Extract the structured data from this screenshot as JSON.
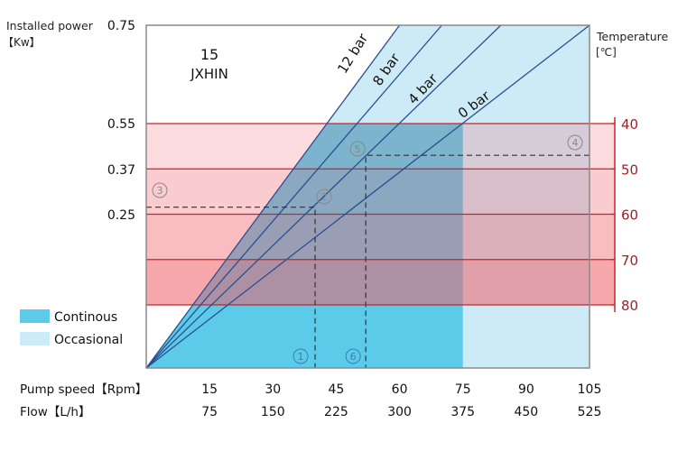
{
  "chart_data": {
    "type": "line",
    "title": "15",
    "subtitle": "JXHIN",
    "ylabel": "Installed power",
    "ylabel_unit": "【Kw】",
    "y_ticks": [
      0.25,
      0.37,
      0.55,
      0.75
    ],
    "y_tick_labels": [
      "0.25",
      "0.37",
      "0.55",
      "0.75"
    ],
    "y2label": "Temperature",
    "y2label_unit": "[℃]",
    "y2_ticks": [
      40,
      50,
      60,
      70,
      80
    ],
    "x_label": "Pump speed【Rpm】",
    "x_ticks": [
      15,
      30,
      45,
      60,
      75,
      90,
      105
    ],
    "x_tick_labels": [
      "15",
      "30",
      "45",
      "60",
      "75",
      "90",
      "105"
    ],
    "x2_label": "Flow【L/h】",
    "x2_tick_labels": [
      "75",
      "150",
      "225",
      "300",
      "375",
      "450",
      "525"
    ],
    "xlim": [
      0,
      105
    ],
    "ylim": [
      0,
      0.75
    ],
    "series": [
      {
        "name": "12 bar",
        "x": [
          0,
          60
        ],
        "y": [
          0,
          0.75
        ]
      },
      {
        "name": "8 bar",
        "x": [
          0,
          70
        ],
        "y": [
          0,
          0.75
        ]
      },
      {
        "name": "4 bar",
        "x": [
          0,
          84
        ],
        "y": [
          0,
          0.75
        ]
      },
      {
        "name": "0 bar",
        "x": [
          0,
          105
        ],
        "y": [
          0,
          0.75
        ]
      }
    ],
    "temperature_bands": [
      {
        "from": 40,
        "to": 50
      },
      {
        "from": 50,
        "to": 60
      },
      {
        "from": 60,
        "to": 70
      },
      {
        "from": 70,
        "to": 80
      }
    ],
    "regions": [
      {
        "name": "Continous",
        "x_range": [
          0,
          75
        ],
        "color": "#5ccbea"
      },
      {
        "name": "Occasional",
        "x_range": [
          75,
          105
        ],
        "color": "#cdebf7"
      }
    ],
    "legend": {
      "position": "bottom-left",
      "items": [
        "Continous",
        "Occasional"
      ]
    },
    "annotations": [
      {
        "label": "①",
        "type": "speed",
        "value": 40
      },
      {
        "label": "②",
        "type": "intersection",
        "speed": 40,
        "power": 0.27
      },
      {
        "label": "③",
        "type": "power",
        "value": 0.27
      },
      {
        "label": "④",
        "type": "temperature",
        "value": 47
      },
      {
        "label": "⑤",
        "type": "intersection",
        "speed": 52,
        "temperature": 47
      },
      {
        "label": "⑥",
        "type": "speed",
        "value": 52
      }
    ],
    "colors": {
      "line": "#2a4f8f",
      "band_line": "#c8242b",
      "axis_text": "#a51e22",
      "frame": "#888888"
    }
  }
}
